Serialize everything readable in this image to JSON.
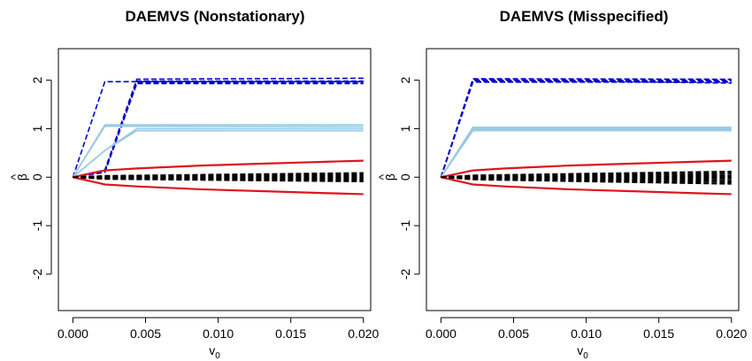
{
  "chart_data": [
    {
      "type": "line",
      "title": "DAEMVS (Nonstationary)",
      "xlabel": "v",
      "xlabel_sub": "0",
      "ylabel": "β",
      "ylabel_hat": "^",
      "xlim": [
        -0.001,
        0.0205
      ],
      "ylim": [
        -2.75,
        2.65
      ],
      "x_ticks": [
        0.0,
        0.005,
        0.01,
        0.015,
        0.02
      ],
      "x_tick_labels": [
        "0.000",
        "0.005",
        "0.010",
        "0.015",
        "0.020"
      ],
      "y_ticks": [
        -2,
        -1,
        0,
        1,
        2
      ],
      "y_tick_labels": [
        "-2",
        "-1",
        "0",
        "1",
        "2"
      ],
      "grid": false,
      "series_groups": [
        {
          "color": "#0000cd",
          "dashed": true,
          "lines": [
            {
              "x": [
                0,
                0.0022,
                0.02
              ],
              "y": [
                0,
                1.97,
                1.97
              ]
            },
            {
              "x": [
                0,
                0.0022,
                0.0044,
                0.02
              ],
              "y": [
                0,
                0.1,
                1.93,
                1.93
              ]
            },
            {
              "x": [
                0,
                0.0022,
                0.0044,
                0.02
              ],
              "y": [
                0,
                0.12,
                1.98,
                1.98
              ]
            },
            {
              "x": [
                0,
                0.0022,
                0.0044,
                0.02
              ],
              "y": [
                0,
                0.15,
                2.02,
                2.04
              ]
            },
            {
              "x": [
                0,
                0.0022,
                0.0044,
                0.02
              ],
              "y": [
                0,
                0.12,
                1.95,
                1.96
              ]
            }
          ]
        },
        {
          "color": "#99c9e4",
          "dashed": false,
          "lines": [
            {
              "x": [
                0,
                0.0022,
                0.02
              ],
              "y": [
                0,
                1.08,
                1.08
              ]
            },
            {
              "x": [
                0,
                0.0022,
                0.02
              ],
              "y": [
                0,
                1.05,
                1.04
              ]
            },
            {
              "x": [
                0,
                0.0022,
                0.0044,
                0.02
              ],
              "y": [
                0,
                0.55,
                0.96,
                0.96
              ]
            },
            {
              "x": [
                0,
                0.0022,
                0.0044,
                0.02
              ],
              "y": [
                0,
                0.55,
                1.0,
                1.0
              ]
            }
          ]
        },
        {
          "color": "#e0141c",
          "dashed": false,
          "lines": [
            {
              "x": [
                0,
                0.0022,
                0.0044,
                0.0066,
                0.0088,
                0.011,
                0.0132,
                0.0154,
                0.0176,
                0.02
              ],
              "y": [
                0,
                0.14,
                0.18,
                0.21,
                0.24,
                0.26,
                0.28,
                0.3,
                0.32,
                0.34
              ]
            },
            {
              "x": [
                0,
                0.0022,
                0.0044,
                0.0066,
                0.0088,
                0.011,
                0.0132,
                0.0154,
                0.0176,
                0.02
              ],
              "y": [
                0,
                -0.15,
                -0.19,
                -0.22,
                -0.25,
                -0.27,
                -0.29,
                -0.31,
                -0.33,
                -0.35
              ]
            }
          ]
        },
        {
          "color": "#000000",
          "dashed": true,
          "lines": [
            {
              "x": [
                0,
                0.0022,
                0.02
              ],
              "y": [
                0,
                0.03,
                0.09
              ]
            },
            {
              "x": [
                0,
                0.0022,
                0.02
              ],
              "y": [
                0,
                0.02,
                0.07
              ]
            },
            {
              "x": [
                0,
                0.0022,
                0.02
              ],
              "y": [
                0,
                0.01,
                0.05
              ]
            },
            {
              "x": [
                0,
                0.0022,
                0.02
              ],
              "y": [
                0,
                0.01,
                0.03
              ]
            },
            {
              "x": [
                0,
                0.0022,
                0.02
              ],
              "y": [
                0,
                0.0,
                0.01
              ]
            },
            {
              "x": [
                0,
                0.0022,
                0.02
              ],
              "y": [
                0,
                -0.01,
                -0.01
              ]
            },
            {
              "x": [
                0,
                0.0022,
                0.02
              ],
              "y": [
                0,
                -0.01,
                -0.03
              ]
            },
            {
              "x": [
                0,
                0.0022,
                0.02
              ],
              "y": [
                0,
                -0.02,
                -0.05
              ]
            },
            {
              "x": [
                0,
                0.0022,
                0.02
              ],
              "y": [
                0,
                -0.03,
                -0.07
              ]
            },
            {
              "x": [
                0,
                0.0022,
                0.02
              ],
              "y": [
                0,
                -0.04,
                -0.09
              ]
            }
          ]
        }
      ]
    },
    {
      "type": "line",
      "title": "DAEMVS (Misspecified)",
      "xlabel": "v",
      "xlabel_sub": "0",
      "ylabel": "β",
      "ylabel_hat": "^",
      "xlim": [
        -0.001,
        0.0205
      ],
      "ylim": [
        -2.75,
        2.65
      ],
      "x_ticks": [
        0.0,
        0.005,
        0.01,
        0.015,
        0.02
      ],
      "x_tick_labels": [
        "0.000",
        "0.005",
        "0.010",
        "0.015",
        "0.020"
      ],
      "y_ticks": [
        -2,
        -1,
        0,
        1,
        2
      ],
      "y_tick_labels": [
        "-2",
        "-1",
        "0",
        "1",
        "2"
      ],
      "grid": false,
      "series_groups": [
        {
          "color": "#0000cd",
          "dashed": true,
          "lines": [
            {
              "x": [
                0,
                0.0022,
                0.02
              ],
              "y": [
                0,
                2.03,
                2.02
              ]
            },
            {
              "x": [
                0,
                0.0022,
                0.02
              ],
              "y": [
                0,
                2.0,
                2.0
              ]
            },
            {
              "x": [
                0,
                0.0022,
                0.02
              ],
              "y": [
                0,
                1.98,
                1.98
              ]
            },
            {
              "x": [
                0,
                0.0022,
                0.02
              ],
              "y": [
                0,
                1.96,
                1.96
              ]
            },
            {
              "x": [
                0,
                0.0022,
                0.02
              ],
              "y": [
                0,
                2.01,
                1.94
              ]
            }
          ]
        },
        {
          "color": "#99c9e4",
          "dashed": false,
          "lines": [
            {
              "x": [
                0,
                0.0022,
                0.02
              ],
              "y": [
                0,
                1.03,
                1.03
              ]
            },
            {
              "x": [
                0,
                0.0022,
                0.02
              ],
              "y": [
                0,
                1.0,
                1.0
              ]
            },
            {
              "x": [
                0,
                0.0022,
                0.02
              ],
              "y": [
                0,
                0.98,
                0.98
              ]
            },
            {
              "x": [
                0,
                0.0022,
                0.02
              ],
              "y": [
                0,
                0.96,
                0.96
              ]
            }
          ]
        },
        {
          "color": "#e0141c",
          "dashed": false,
          "lines": [
            {
              "x": [
                0,
                0.0022,
                0.0044,
                0.0066,
                0.0088,
                0.011,
                0.0132,
                0.0154,
                0.0176,
                0.02
              ],
              "y": [
                0,
                0.14,
                0.18,
                0.21,
                0.24,
                0.26,
                0.28,
                0.3,
                0.32,
                0.34
              ]
            },
            {
              "x": [
                0,
                0.0022,
                0.0044,
                0.0066,
                0.0088,
                0.011,
                0.0132,
                0.0154,
                0.0176,
                0.02
              ],
              "y": [
                0,
                -0.15,
                -0.19,
                -0.22,
                -0.25,
                -0.27,
                -0.29,
                -0.31,
                -0.33,
                -0.35
              ]
            }
          ]
        },
        {
          "color": "#000000",
          "dashed": true,
          "lines": [
            {
              "x": [
                0,
                0.0022,
                0.02
              ],
              "y": [
                0,
                0.04,
                0.12
              ]
            },
            {
              "x": [
                0,
                0.0022,
                0.02
              ],
              "y": [
                0,
                0.03,
                0.09
              ]
            },
            {
              "x": [
                0,
                0.0022,
                0.02
              ],
              "y": [
                0,
                0.02,
                0.06
              ]
            },
            {
              "x": [
                0,
                0.0022,
                0.02
              ],
              "y": [
                0,
                0.01,
                0.03
              ]
            },
            {
              "x": [
                0,
                0.0022,
                0.02
              ],
              "y": [
                0,
                0.0,
                0.01
              ]
            },
            {
              "x": [
                0,
                0.0022,
                0.02
              ],
              "y": [
                0,
                -0.01,
                -0.02
              ]
            },
            {
              "x": [
                0,
                0.0022,
                0.02
              ],
              "y": [
                0,
                -0.02,
                -0.05
              ]
            },
            {
              "x": [
                0,
                0.0022,
                0.02
              ],
              "y": [
                0,
                -0.03,
                -0.08
              ]
            },
            {
              "x": [
                0,
                0.0022,
                0.02
              ],
              "y": [
                0,
                -0.04,
                -0.11
              ]
            },
            {
              "x": [
                0,
                0.0022,
                0.02
              ],
              "y": [
                0,
                -0.05,
                -0.14
              ]
            }
          ]
        }
      ]
    }
  ]
}
